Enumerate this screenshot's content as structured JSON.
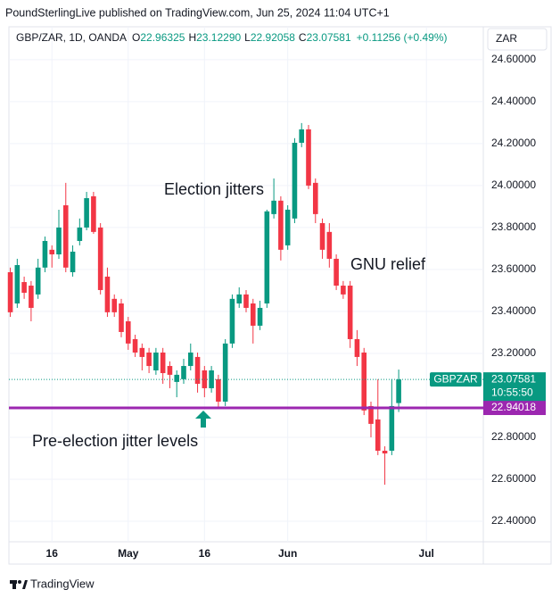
{
  "header": {
    "attribution": "PoundSterlingLive published on TradingView.com, Jun 25, 2024 11:04 UTC+1"
  },
  "chart_data": {
    "type": "candlestick",
    "legend": {
      "symbol": "GBP/ZAR, 1D, OANDA",
      "open_label": "O",
      "open": "22.96325",
      "high_label": "H",
      "high": "23.12290",
      "low_label": "L",
      "low": "22.92058",
      "close_label": "C",
      "close": "23.07581",
      "change": "+0.11256 (+0.49%)"
    },
    "currency": "ZAR",
    "x": [
      0,
      1,
      2,
      3,
      4,
      5,
      6,
      7,
      8,
      9,
      10,
      11,
      12,
      13,
      14,
      15,
      16,
      17,
      18,
      19,
      20,
      21,
      22,
      23,
      24,
      25,
      26,
      27,
      28,
      29,
      30,
      31,
      32,
      33,
      34,
      35,
      36,
      37,
      38,
      39,
      40,
      41,
      42,
      43,
      44,
      45,
      46,
      47,
      48,
      49,
      50,
      51,
      52,
      53,
      54,
      55,
      56
    ],
    "series": [
      {
        "name": "GBPZAR",
        "up_color": "#089981",
        "down_color": "#f23645",
        "open": [
          23.587,
          23.438,
          23.54,
          23.523,
          23.481,
          23.609,
          23.694,
          23.672,
          23.906,
          23.587,
          23.736,
          23.8,
          23.949,
          23.8,
          23.566,
          23.46,
          23.438,
          23.353,
          23.268,
          23.226,
          23.204,
          23.119,
          23.204,
          23.14,
          23.064,
          23.077,
          23.14,
          23.183,
          23.119,
          23.034,
          23.077,
          22.97,
          23.247,
          23.438,
          23.481,
          23.438,
          23.332,
          23.438,
          23.864,
          23.928,
          23.715,
          23.843,
          24.204,
          24.268,
          24.013,
          23.821,
          23.779,
          23.651,
          23.523,
          23.523,
          23.268,
          23.204,
          22.949,
          22.885,
          22.736,
          22.736,
          22.96325
        ],
        "high": [
          23.609,
          23.651,
          23.566,
          23.545,
          23.651,
          23.757,
          23.715,
          23.885,
          24.013,
          23.715,
          23.843,
          23.97,
          23.97,
          23.821,
          23.609,
          23.481,
          23.46,
          23.374,
          23.289,
          23.247,
          23.226,
          23.226,
          23.226,
          23.162,
          23.119,
          23.174,
          23.247,
          23.204,
          23.14,
          23.14,
          23.098,
          23.268,
          23.481,
          23.515,
          23.502,
          23.46,
          23.451,
          23.885,
          24.034,
          23.949,
          23.906,
          24.226,
          24.298,
          24.289,
          24.034,
          23.843,
          23.821,
          23.672,
          23.545,
          23.545,
          23.311,
          23.226,
          22.97,
          23.077,
          22.757,
          23.077,
          23.1229
        ],
        "low": [
          23.374,
          23.417,
          23.46,
          23.353,
          23.46,
          23.587,
          23.609,
          23.651,
          23.587,
          23.566,
          23.715,
          23.787,
          23.77,
          23.481,
          23.374,
          23.374,
          23.277,
          23.217,
          23.183,
          23.119,
          23.106,
          23.098,
          23.055,
          23.034,
          22.991,
          23.055,
          23.119,
          23.013,
          22.991,
          23.013,
          22.936,
          22.949,
          23.226,
          23.417,
          23.396,
          23.247,
          23.311,
          23.417,
          23.843,
          23.643,
          23.694,
          23.821,
          24.183,
          23.983,
          23.821,
          23.651,
          23.609,
          23.502,
          23.46,
          23.226,
          23.14,
          22.906,
          22.8,
          22.715,
          22.574,
          22.715,
          22.92058
        ],
        "close": [
          23.396,
          23.621,
          23.489,
          23.417,
          23.609,
          23.736,
          23.672,
          23.8,
          23.609,
          23.685,
          23.8,
          23.94,
          23.779,
          23.502,
          23.396,
          23.396,
          23.302,
          23.247,
          23.204,
          23.183,
          23.14,
          23.204,
          23.106,
          23.098,
          23.098,
          23.14,
          23.204,
          23.055,
          23.034,
          23.119,
          22.97,
          23.247,
          23.46,
          23.481,
          23.417,
          23.332,
          23.417,
          23.877,
          23.928,
          23.694,
          23.885,
          24.204,
          24.268,
          24.0,
          23.864,
          23.694,
          23.651,
          23.523,
          23.481,
          23.268,
          23.183,
          22.928,
          22.864,
          22.736,
          22.723,
          22.949,
          23.07581
        ]
      }
    ],
    "xlim": [
      -0.2,
      68.2
    ],
    "xticks": [
      {
        "value": 6,
        "label": "16"
      },
      {
        "value": 17,
        "label": "May"
      },
      {
        "value": 28,
        "label": "16"
      },
      {
        "value": 40,
        "label": "Jun"
      },
      {
        "value": 60,
        "label": "Jul"
      }
    ],
    "ylim": [
      22.302,
      24.757
    ],
    "yticks": [
      {
        "value": 22.4,
        "label": "22.40000"
      },
      {
        "value": 22.6,
        "label": "22.60000"
      },
      {
        "value": 22.8,
        "label": "22.80000"
      },
      {
        "value": 23.2,
        "label": "23.20000"
      },
      {
        "value": 23.4,
        "label": "23.40000"
      },
      {
        "value": 23.6,
        "label": "23.60000"
      },
      {
        "value": 23.8,
        "label": "23.80000"
      },
      {
        "value": 24.0,
        "label": "24.00000"
      },
      {
        "value": 24.2,
        "label": "24.20000"
      },
      {
        "value": 24.4,
        "label": "24.40000"
      },
      {
        "value": 24.6,
        "label": "24.60000"
      }
    ],
    "grid": true,
    "countdown": "10:55:50",
    "reference_line": {
      "value": 22.94018,
      "color": "#9c27b0"
    },
    "annotations": [
      {
        "text": "Election jitters"
      },
      {
        "text": "GNU relief"
      },
      {
        "text": "Pre-election jitter levels"
      }
    ]
  },
  "footer": {
    "brand": "TradingView"
  }
}
